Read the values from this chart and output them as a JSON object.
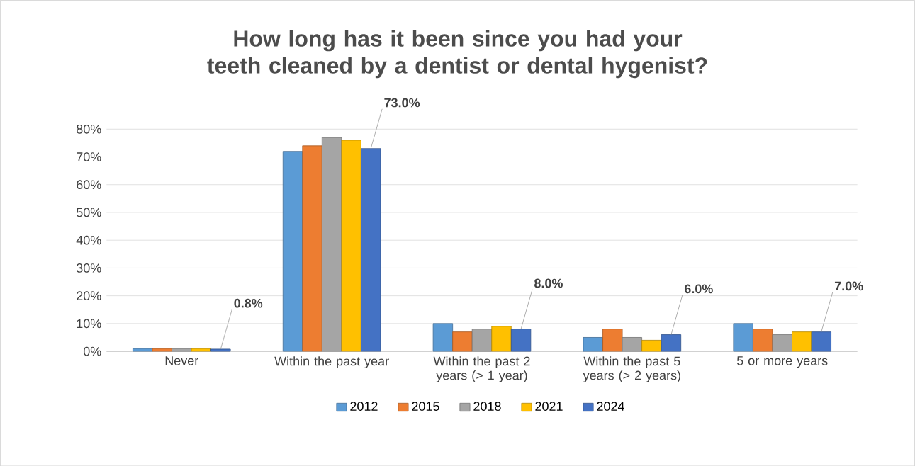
{
  "chart_data": {
    "type": "bar",
    "title": "How long has it been since you had your teeth cleaned by a dentist or dental hygenist?",
    "categories": [
      "Never",
      "Within the past year",
      "Within the past 2 years (> 1 year)",
      "Within the past 5 years (> 2 years)",
      "5 or more years"
    ],
    "series": [
      {
        "name": "2012",
        "color": "#5b9bd5",
        "values": [
          1,
          72,
          10,
          5,
          10
        ]
      },
      {
        "name": "2015",
        "color": "#ed7d31",
        "values": [
          1,
          74,
          7,
          8,
          8
        ]
      },
      {
        "name": "2018",
        "color": "#a5a5a5",
        "values": [
          1,
          77,
          8,
          5,
          6
        ]
      },
      {
        "name": "2021",
        "color": "#ffc000",
        "values": [
          1,
          76,
          9,
          4,
          7
        ]
      },
      {
        "name": "2024",
        "color": "#4472c4",
        "values": [
          0.8,
          73,
          8,
          6,
          7
        ],
        "value_labels": [
          "0.8%",
          "73.0%",
          "8.0%",
          "6.0%",
          "7.0%"
        ]
      }
    ],
    "ylim": [
      0,
      80
    ],
    "yticks": [
      {
        "value": 0,
        "label": "0%"
      },
      {
        "value": 10,
        "label": "10%"
      },
      {
        "value": 20,
        "label": "20%"
      },
      {
        "value": 30,
        "label": "30%"
      },
      {
        "value": 40,
        "label": "40%"
      },
      {
        "value": 50,
        "label": "50%"
      },
      {
        "value": 60,
        "label": "60%"
      },
      {
        "value": 70,
        "label": "70%"
      },
      {
        "value": 80,
        "label": "80%"
      }
    ],
    "grid": "y",
    "legend": "bottom"
  }
}
